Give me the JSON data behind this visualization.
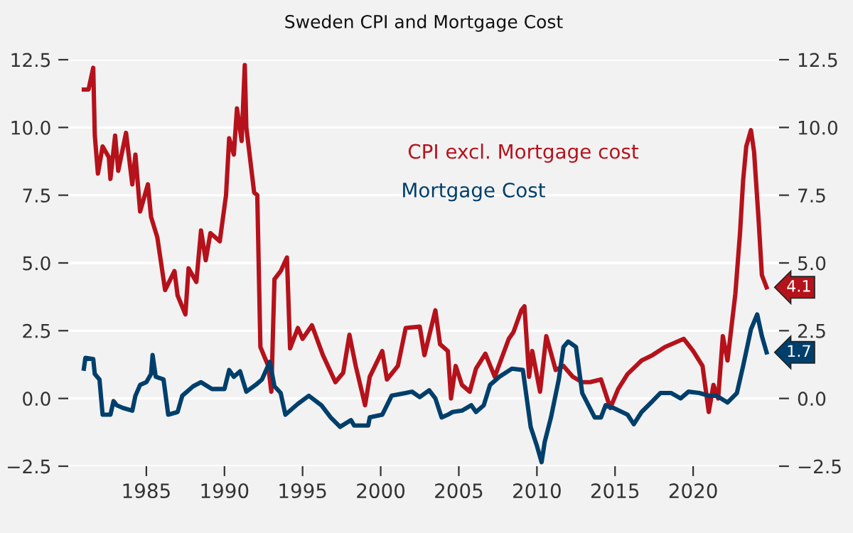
{
  "chart_data": {
    "type": "line",
    "title": "Sweden CPI and Mortgage Cost",
    "series": [
      {
        "name": "CPI excl. Mortgage cost",
        "color": "#b5121b",
        "x": [
          1981.0,
          1981.3,
          1981.6,
          1981.7,
          1981.9,
          1982.2,
          1982.6,
          1982.7,
          1983.0,
          1983.2,
          1983.7,
          1984.1,
          1984.3,
          1984.6,
          1985.1,
          1985.3,
          1985.7,
          1986.2,
          1986.8,
          1987.0,
          1987.5,
          1987.7,
          1988.2,
          1988.5,
          1988.8,
          1989.1,
          1989.7,
          1990.1,
          1990.3,
          1990.6,
          1990.8,
          1991.1,
          1991.3,
          1991.4,
          1991.9,
          1992.1,
          1992.3,
          1992.8,
          1993.0,
          1993.2,
          1993.6,
          1994.0,
          1994.2,
          1994.7,
          1995.0,
          1995.6,
          1996.3,
          1997.1,
          1997.6,
          1998.0,
          1998.4,
          1999.0,
          1999.3,
          2000.1,
          2000.4,
          2001.1,
          2001.6,
          2002.5,
          2002.8,
          2003.5,
          2003.8,
          2004.3,
          2004.5,
          2004.8,
          2005.2,
          2005.7,
          2006.1,
          2006.7,
          2007.3,
          2008.2,
          2008.5,
          2009.0,
          2009.2,
          2009.5,
          2009.7,
          2010.2,
          2010.6,
          2011.2,
          2011.7,
          2012.3,
          2012.9,
          2013.4,
          2014.1,
          2014.7,
          2015.2,
          2015.8,
          2016.7,
          2017.4,
          2018.2,
          2019.4,
          2020.0,
          2020.6,
          2021.0,
          2021.3,
          2021.6,
          2021.9,
          2022.2,
          2022.7,
          2023.0,
          2023.2,
          2023.4,
          2023.7,
          2023.9,
          2024.2,
          2024.4,
          2024.7
        ],
        "values": [
          11.4,
          11.4,
          12.2,
          9.7,
          8.3,
          9.3,
          8.9,
          8.1,
          9.7,
          8.4,
          9.8,
          7.9,
          9.0,
          6.9,
          7.9,
          6.7,
          5.95,
          4.0,
          4.7,
          3.8,
          3.1,
          4.8,
          4.3,
          6.2,
          5.1,
          6.1,
          5.8,
          7.5,
          9.6,
          9.0,
          10.7,
          9.5,
          12.3,
          10.0,
          7.6,
          7.5,
          1.9,
          1.2,
          0.25,
          4.4,
          4.7,
          5.2,
          1.85,
          2.6,
          2.2,
          2.7,
          1.6,
          0.6,
          0.95,
          2.35,
          1.2,
          -0.25,
          0.8,
          1.75,
          0.7,
          1.2,
          2.6,
          2.65,
          1.6,
          3.25,
          2.0,
          1.75,
          0.0,
          1.2,
          0.5,
          0.25,
          1.1,
          1.65,
          0.8,
          2.2,
          2.45,
          3.25,
          3.4,
          0.8,
          1.75,
          0.25,
          2.3,
          1.05,
          1.2,
          0.8,
          0.6,
          0.6,
          0.7,
          -0.35,
          0.35,
          0.9,
          1.4,
          1.6,
          1.9,
          2.2,
          1.75,
          1.2,
          -0.5,
          0.5,
          0.0,
          2.3,
          1.4,
          3.85,
          6.1,
          8.05,
          9.3,
          9.9,
          9.1,
          6.5,
          4.55,
          4.1
        ]
      },
      {
        "name": "Mortgage Cost",
        "color": "#003f6b",
        "x": [
          1981.0,
          1981.1,
          1981.6,
          1981.7,
          1982.0,
          1982.2,
          1982.7,
          1982.9,
          1983.1,
          1983.5,
          1984.1,
          1984.3,
          1984.6,
          1985.0,
          1985.3,
          1985.4,
          1985.6,
          1986.1,
          1986.4,
          1987.0,
          1987.3,
          1988.0,
          1988.5,
          1989.2,
          1990.0,
          1990.3,
          1990.6,
          1991.0,
          1991.4,
          1992.0,
          1992.4,
          1992.9,
          1993.2,
          1993.6,
          1993.9,
          1994.7,
          1995.4,
          1996.2,
          1996.8,
          1997.4,
          1998.1,
          1998.3,
          1999.2,
          1999.3,
          2000.1,
          2000.7,
          2001.6,
          2002.0,
          2002.5,
          2003.1,
          2003.5,
          2003.9,
          2004.3,
          2004.6,
          2005.2,
          2005.8,
          2006.1,
          2006.6,
          2007.0,
          2007.6,
          2008.4,
          2009.1,
          2009.6,
          2010.0,
          2010.3,
          2010.5,
          2010.9,
          2011.4,
          2011.7,
          2012.0,
          2012.5,
          2012.9,
          2013.7,
          2014.1,
          2014.4,
          2014.9,
          2015.8,
          2016.2,
          2016.7,
          2017.4,
          2017.9,
          2018.6,
          2019.2,
          2019.7,
          2020.4,
          2021.0,
          2021.5,
          2022.2,
          2022.8,
          2023.2,
          2023.7,
          2024.1,
          2024.4,
          2024.7
        ],
        "values": [
          1.1,
          1.5,
          1.45,
          0.9,
          0.7,
          -0.6,
          -0.6,
          -0.1,
          -0.25,
          -0.35,
          -0.45,
          0.1,
          0.5,
          0.6,
          0.9,
          1.6,
          0.8,
          0.7,
          -0.6,
          -0.5,
          0.1,
          0.45,
          0.6,
          0.35,
          0.35,
          1.05,
          0.8,
          1.0,
          0.25,
          0.5,
          0.7,
          1.35,
          0.45,
          0.2,
          -0.6,
          -0.2,
          0.1,
          -0.25,
          -0.7,
          -1.05,
          -0.8,
          -1.0,
          -1.0,
          -0.7,
          -0.6,
          0.1,
          0.2,
          0.25,
          0.05,
          0.3,
          0.0,
          -0.7,
          -0.6,
          -0.5,
          -0.45,
          -0.25,
          -0.5,
          -0.25,
          0.5,
          0.8,
          1.1,
          1.05,
          -1.05,
          -1.75,
          -2.35,
          -1.6,
          -0.7,
          0.7,
          1.9,
          2.1,
          1.9,
          0.2,
          -0.7,
          -0.7,
          -0.25,
          -0.35,
          -0.6,
          -0.95,
          -0.5,
          -0.1,
          0.2,
          0.2,
          0.0,
          0.25,
          0.2,
          0.1,
          0.1,
          -0.15,
          0.2,
          1.2,
          2.55,
          3.1,
          2.3,
          1.7
        ]
      }
    ],
    "annotations": [
      {
        "text": "4.1",
        "x": 2024.7,
        "y": 4.1
      },
      {
        "text": "1.7",
        "x": 2024.7,
        "y": 1.7
      }
    ],
    "xlim": [
      1980,
      2025.5
    ],
    "xticks": [
      1985,
      1990,
      1995,
      2000,
      2005,
      2010,
      2015,
      2020
    ],
    "ylim": [
      -2.5,
      12.5
    ],
    "yticks": [
      {
        "value": -2.5,
        "label": "−2.5"
      },
      {
        "value": 0,
        "label": "0.0"
      },
      {
        "value": 2.5,
        "label": "2.5"
      },
      {
        "value": 5,
        "label": "5.0"
      },
      {
        "value": 7.5,
        "label": "7.5"
      },
      {
        "value": 10,
        "label": "10.0"
      },
      {
        "value": 12.5,
        "label": "12.5"
      }
    ],
    "y2lim": [
      -2.5,
      12.5
    ],
    "y2ticks": [
      {
        "value": -2.5,
        "label": "−2.5"
      },
      {
        "value": 0,
        "label": "0.0"
      },
      {
        "value": 2.5,
        "label": "2.5"
      },
      {
        "value": 5,
        "label": "5.0"
      },
      {
        "value": 7.5,
        "label": "7.5"
      },
      {
        "value": 10,
        "label": "10.0"
      },
      {
        "value": 12.5,
        "label": "12.5"
      }
    ],
    "grid": "y",
    "legend": false
  }
}
